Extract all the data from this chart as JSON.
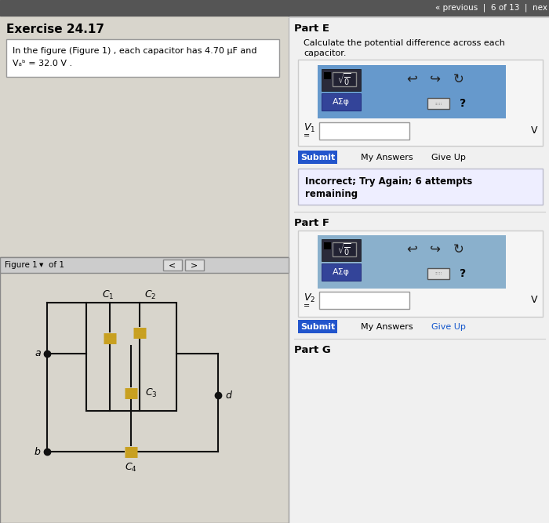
{
  "bg_top": "#555555",
  "bg_left": "#d8d5cc",
  "bg_right": "#f0f0f0",
  "bg_figure": "#d8d5cc",
  "title": "Exercise 24.17",
  "problem_text_line1": "In the figure (Figure 1) , each capacitor has 4.70 μF and",
  "problem_text_line2": "Vₐᵇ = 32.0 V .",
  "nav_text": "« previous  |  6 of 13  |  nex",
  "part_e_title": "Part E",
  "part_e_desc1": "Calculate the potential difference across each",
  "part_e_desc2": "capacitor.",
  "part_f_title": "Part F",
  "part_g_title": "Part G",
  "v_unit": "V",
  "submit_color": "#2255cc",
  "submit_text": "Submit",
  "my_answers_text": "My Answers",
  "give_up_text": "Give Up",
  "figure_label": "Figure 1",
  "of_1_text": "of 1",
  "cap_color": "#c8a020",
  "wire_color": "#111111",
  "dot_color": "#111111",
  "input_box_color": "#ffffff",
  "input_border_color": "#999999",
  "blue_box_e_color": "#6699cc",
  "blue_box_f_color": "#8ab0cc",
  "toolbar_dark": "#2a2a3a",
  "asf_btn_color": "#334499",
  "incorrect_box_color": "#eeeeff",
  "incorrect_box_border": "#bbbbcc",
  "outer_input_box": "#e8e8e8",
  "outer_input_border": "#bbbbbb"
}
